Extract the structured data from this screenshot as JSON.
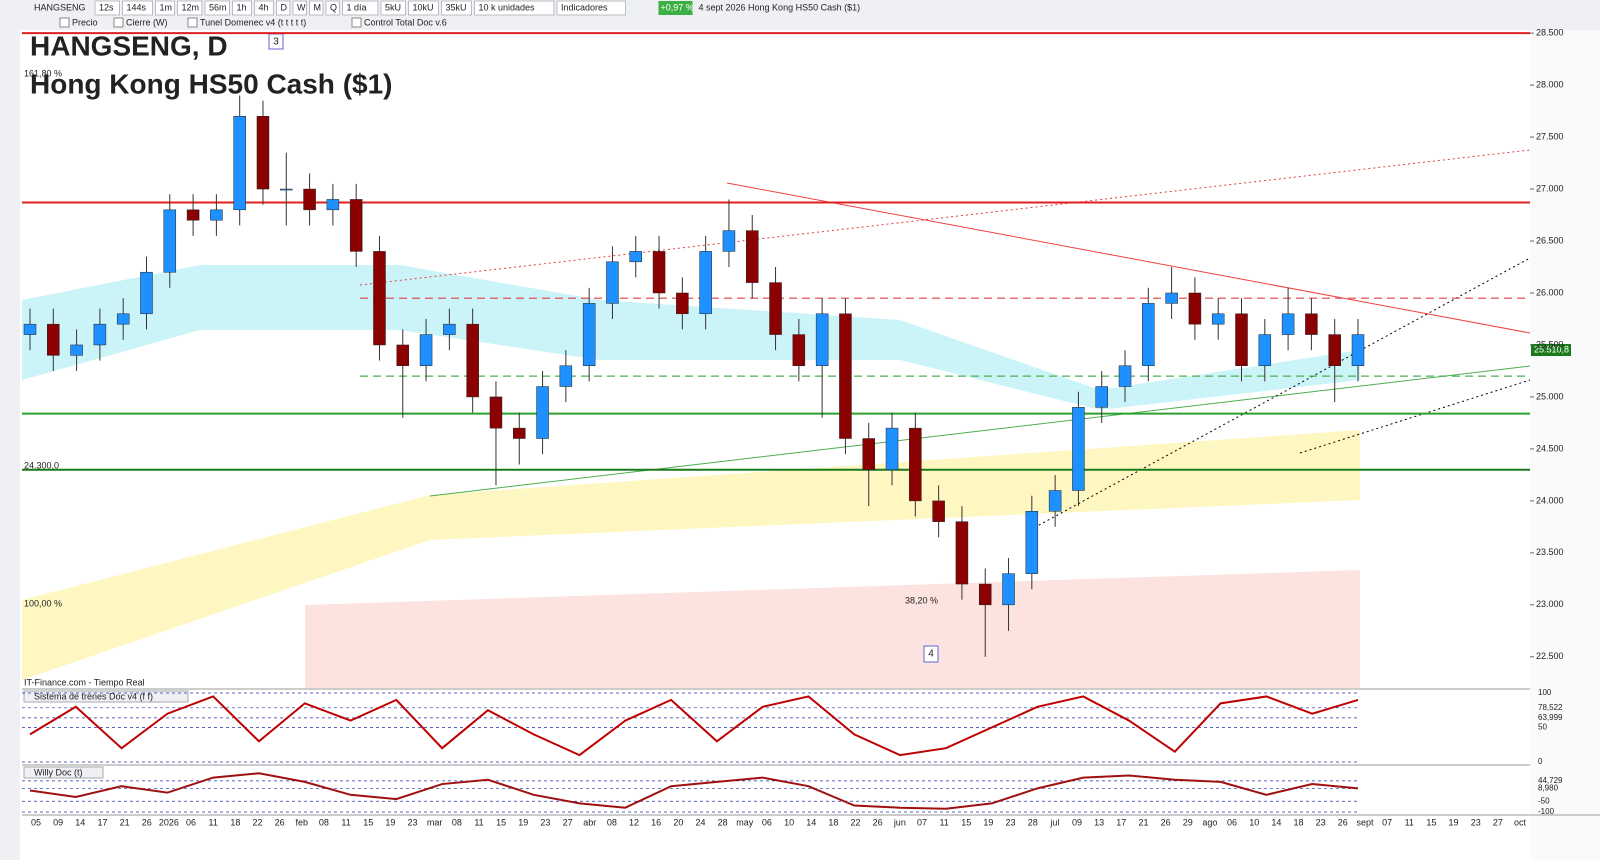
{
  "toolbar": {
    "symbol": "HANGSENG",
    "buttons": [
      "12s",
      "144s",
      "1m",
      "12m",
      "56m",
      "1h",
      "4h",
      "D",
      "W",
      "M",
      "Q",
      "1 día",
      "5kU",
      "10kU",
      "35kU",
      "10 k unidades",
      "Indicadores"
    ],
    "change": "+0,97 %",
    "info": "4 sept 2026  Hong Kong HS50 Cash ($1)",
    "layers": [
      "Precio",
      "Cierre (W)",
      "Tunel Domenec v4 (t t t t t)",
      "Control Total Doc v.6"
    ]
  },
  "chart_data": {
    "type": "candlestick",
    "title": "HANGSENG, D",
    "subtitle": "Hong Kong HS50 Cash ($1)",
    "source": "IT-Finance.com - Tiempo Real",
    "badges": [
      "3",
      "4"
    ],
    "open": [
      25600,
      25700,
      25400,
      25500,
      25700,
      25800,
      26200,
      26800,
      26700,
      26800,
      27700,
      27000,
      27000,
      26800,
      26900,
      26400,
      25500,
      25300,
      25600,
      25700,
      25000,
      24700,
      24600,
      25100,
      25300,
      25900,
      26300,
      26400,
      26000,
      25800,
      26400,
      26600,
      26100,
      25600,
      25300,
      25800,
      24600,
      24300,
      24700,
      24000,
      23800,
      23200,
      23000,
      23300,
      23900,
      24100,
      24900,
      25100,
      25300,
      25900,
      26000,
      25700,
      25800,
      25300,
      25600,
      25800,
      25600,
      25300
    ],
    "high": [
      25850,
      25850,
      25650,
      25850,
      25950,
      26350,
      26950,
      26950,
      26950,
      27900,
      27850,
      27350,
      27150,
      27050,
      27050,
      26550,
      25650,
      25750,
      25850,
      25850,
      25150,
      24850,
      25250,
      25450,
      26050,
      26450,
      26550,
      26550,
      26150,
      26550,
      26900,
      26750,
      26250,
      25750,
      25950,
      25950,
      24750,
      24850,
      24850,
      24150,
      23950,
      23350,
      23450,
      24050,
      24250,
      25050,
      25250,
      25450,
      26050,
      26250,
      26150,
      25950,
      25950,
      25750,
      26050,
      25950,
      25750,
      25750
    ],
    "low": [
      25450,
      25250,
      25250,
      25350,
      25550,
      25650,
      26050,
      26550,
      26550,
      26650,
      26850,
      26650,
      26650,
      26650,
      26250,
      25350,
      24800,
      25150,
      25450,
      24850,
      24150,
      24350,
      24450,
      24950,
      25150,
      25750,
      26150,
      25850,
      25650,
      25650,
      26250,
      25950,
      25450,
      25150,
      24800,
      24450,
      23950,
      24150,
      23850,
      23650,
      23050,
      22500,
      22750,
      23150,
      23750,
      23950,
      24750,
      24950,
      25150,
      25750,
      25550,
      25550,
      25150,
      25150,
      25450,
      25450,
      24950,
      25150
    ],
    "close": [
      25700,
      25400,
      25500,
      25700,
      25800,
      26200,
      26800,
      26700,
      26800,
      27700,
      27000,
      27000,
      26800,
      26900,
      26400,
      25500,
      25300,
      25600,
      25700,
      25000,
      24700,
      24600,
      25100,
      25300,
      25900,
      26300,
      26400,
      26000,
      25800,
      26400,
      26600,
      26100,
      25600,
      25300,
      25800,
      24600,
      24300,
      24700,
      24000,
      23800,
      23200,
      23000,
      23300,
      23900,
      24100,
      24900,
      25100,
      25300,
      25900,
      26000,
      25700,
      25800,
      25300,
      25600,
      25800,
      25600,
      25300,
      25600
    ],
    "up_color": "#1e90ff",
    "down_color": "#8b0000",
    "ylim": [
      22200,
      28530
    ],
    "yticks": [
      {
        "value": 22500,
        "label": "22.500"
      },
      {
        "value": 23000,
        "label": "23.000"
      },
      {
        "value": 23500,
        "label": "23.500"
      },
      {
        "value": 24000,
        "label": "24.000"
      },
      {
        "value": 24500,
        "label": "24.500"
      },
      {
        "value": 25000,
        "label": "25.000"
      },
      {
        "value": 25500,
        "label": "25.500"
      },
      {
        "value": 26000,
        "label": "26.000"
      },
      {
        "value": 26500,
        "label": "26.500"
      },
      {
        "value": 27000,
        "label": "27.000"
      },
      {
        "value": 27500,
        "label": "27.500"
      },
      {
        "value": 28000,
        "label": "28.000"
      },
      {
        "value": 28500,
        "label": "28.500"
      }
    ],
    "levels": [
      {
        "value": 28500,
        "color": "#e02020",
        "style": "solid"
      },
      {
        "value": 26870,
        "color": "#e02020",
        "style": "solid"
      },
      {
        "value": 25950,
        "color": "#e04040",
        "style": "dashed"
      },
      {
        "value": 25200,
        "color": "#4caf50",
        "style": "dashed"
      },
      {
        "value": 24840,
        "color": "#2ca02c",
        "style": "solid"
      },
      {
        "value": 24300,
        "color": "#1b7a1b",
        "style": "solid"
      }
    ],
    "level_labels": [
      "161,80 %",
      "100,00 %",
      "38,20 %",
      "24.300,0"
    ],
    "price_tags": [
      "25.510,8"
    ],
    "x_labels": [
      "05",
      "09",
      "14",
      "17",
      "21",
      "26",
      "2026",
      "06",
      "11",
      "18",
      "22",
      "26",
      "feb",
      "08",
      "11",
      "15",
      "19",
      "23",
      "mar",
      "08",
      "11",
      "15",
      "19",
      "23",
      "27",
      "abr",
      "08",
      "12",
      "16",
      "20",
      "24",
      "28",
      "may",
      "06",
      "10",
      "14",
      "18",
      "22",
      "26",
      "jun",
      "07",
      "11",
      "15",
      "19",
      "23",
      "28",
      "jul",
      "09",
      "13",
      "17",
      "21",
      "26",
      "29",
      "ago",
      "06",
      "10",
      "14",
      "18",
      "23",
      "26",
      "sept",
      "07",
      "11",
      "15",
      "19",
      "23",
      "27",
      "oct"
    ],
    "indicators": [
      {
        "name": "Sistema de trenes Doc v4 (f f)",
        "ylim": [
          0,
          100
        ],
        "yticks": [
          100,
          {
            "value": 78.522,
            "label": "78,522"
          },
          {
            "value": 63.999,
            "label": "63,999"
          },
          50,
          0
        ],
        "color": "#c00000",
        "values": [
          40,
          80,
          20,
          70,
          95,
          30,
          85,
          60,
          90,
          20,
          75,
          40,
          10,
          60,
          90,
          30,
          80,
          95,
          40,
          10,
          20,
          50,
          80,
          95,
          60,
          15,
          85,
          95,
          70,
          90
        ]
      },
      {
        "name": "Willy Doc (t)",
        "ylim": [
          -100,
          100
        ],
        "yticks": [
          {
            "value": 44.729,
            "label": "44,729"
          },
          {
            "value": 8.98,
            "label": "8,980"
          },
          -50,
          -100
        ],
        "color": "#a01010",
        "values": [
          0,
          -30,
          20,
          -10,
          60,
          80,
          40,
          -20,
          -40,
          30,
          50,
          -20,
          -60,
          -80,
          20,
          40,
          60,
          20,
          -70,
          -80,
          -85,
          -60,
          10,
          60,
          70,
          50,
          40,
          -20,
          30,
          10
        ]
      }
    ]
  }
}
